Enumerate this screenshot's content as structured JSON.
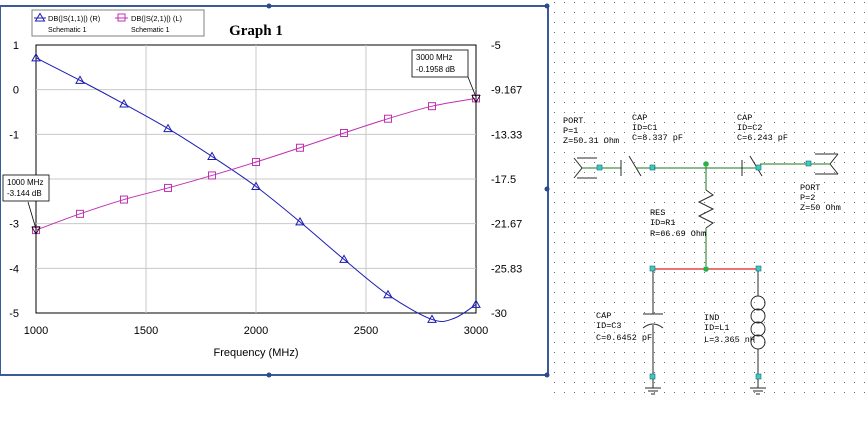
{
  "graph": {
    "title": "Graph 1",
    "legend": [
      {
        "label": "DB(|S(1,1)|) (R)",
        "source": "Schematic 1",
        "color": "#1c1cb4",
        "marker": "triangle"
      },
      {
        "label": "DB(|S(2,1)|) (L)",
        "source": "Schematic 1",
        "color": "#c030b0",
        "marker": "square"
      }
    ],
    "markers": [
      {
        "freq": "1000 MHz",
        "value": "-3.144 dB"
      },
      {
        "freq": "3000 MHz",
        "value": "-0.1958 dB"
      }
    ]
  },
  "chart_data": {
    "type": "line",
    "title": "Graph 1",
    "xlabel": "Frequency (MHz)",
    "xlim": [
      1000,
      3000
    ],
    "x_ticks": [
      "1000",
      "1500",
      "2000",
      "2500",
      "3000"
    ],
    "left_axis": {
      "ylim": [
        -5,
        1
      ],
      "ticks": [
        "1",
        "0",
        "-1",
        "-2",
        "-3",
        "-4",
        "-5"
      ]
    },
    "right_axis": {
      "ylim": [
        -30,
        -5
      ],
      "ticks": [
        "-5",
        "-9.167",
        "-13.33",
        "-17.5",
        "-21.67",
        "-25.83",
        "-30"
      ]
    },
    "grid": true,
    "legend_position": "top-left",
    "series": [
      {
        "name": "DB(|S(1,1)|) (R)",
        "axis": "right",
        "color": "#1c1cb4",
        "x": [
          1000,
          1200,
          1400,
          1600,
          1800,
          2000,
          2200,
          2400,
          2600,
          2800,
          2900,
          3000
        ],
        "y": [
          -6.2,
          -8.3,
          -10.5,
          -12.8,
          -15.4,
          -18.2,
          -21.5,
          -25.0,
          -28.3,
          -30.6,
          -30.5,
          -29.2
        ]
      },
      {
        "name": "DB(|S(2,1)|) (L)",
        "axis": "left",
        "color": "#c030b0",
        "x": [
          1000,
          1200,
          1400,
          1600,
          1800,
          2000,
          2200,
          2400,
          2600,
          2800,
          3000
        ],
        "y": [
          -3.144,
          -2.78,
          -2.46,
          -2.2,
          -1.92,
          -1.62,
          -1.3,
          -0.97,
          -0.65,
          -0.37,
          -0.1958
        ]
      }
    ]
  },
  "schematic": {
    "port1": [
      "PORT",
      "P=1",
      "Z=50.31 Ohm"
    ],
    "cap_c1": [
      "CAP",
      "ID=C1",
      "C=8.337 pF"
    ],
    "cap_c2": [
      "CAP",
      "ID=C2",
      "C=6.243 pF"
    ],
    "port2": [
      "PORT",
      "P=2",
      "Z=50 Ohm"
    ],
    "res_r1": [
      "RES",
      "ID=R1",
      "R=66.69 Ohm"
    ],
    "cap_c3": [
      "CAP",
      "ID=C3",
      "C=0.6452 pF"
    ],
    "ind_l1": [
      "IND",
      "ID=L1",
      "L=3.365 nH"
    ]
  }
}
